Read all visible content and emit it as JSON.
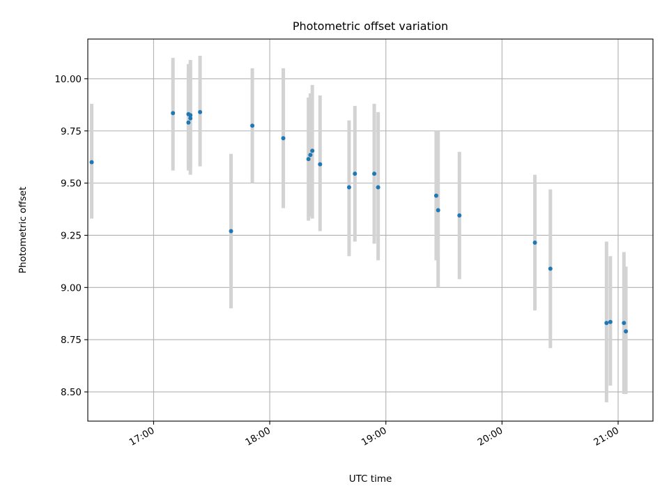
{
  "chart_data": {
    "type": "scatter",
    "title": "Photometric offset variation",
    "xlabel": "UTC time",
    "ylabel": "Photometric offset",
    "xlim": [
      "16:26",
      "21:18"
    ],
    "ylim": [
      8.36,
      10.19
    ],
    "x_ticks": [
      "17:00",
      "18:00",
      "19:00",
      "20:00",
      "21:00"
    ],
    "y_ticks": [
      10.0,
      9.75,
      9.5,
      9.25,
      9.0,
      8.75,
      8.5
    ],
    "y_tick_labels": [
      "10.00",
      "9.75",
      "9.50",
      "9.25",
      "9.00",
      "8.75",
      "8.50"
    ],
    "grid": true,
    "marker_color": "#1f77b4",
    "errorbar_color": "#d3d3d3",
    "points": [
      {
        "x": "16:28",
        "y": 9.6,
        "ylow": 9.33,
        "yhigh": 9.88
      },
      {
        "x": "17:10",
        "y": 9.835,
        "ylow": 9.56,
        "yhigh": 10.1
      },
      {
        "x": "17:18",
        "y": 9.83,
        "ylow": 9.59,
        "yhigh": 10.07
      },
      {
        "x": "17:18",
        "y": 9.79,
        "ylow": 9.56,
        "yhigh": 10.02
      },
      {
        "x": "17:19",
        "y": 9.825,
        "ylow": 9.57,
        "yhigh": 10.09
      },
      {
        "x": "17:19",
        "y": 9.81,
        "ylow": 9.54,
        "yhigh": 10.08
      },
      {
        "x": "17:24",
        "y": 9.84,
        "ylow": 9.58,
        "yhigh": 10.11
      },
      {
        "x": "17:40",
        "y": 9.27,
        "ylow": 8.9,
        "yhigh": 9.64
      },
      {
        "x": "17:51",
        "y": 9.775,
        "ylow": 9.5,
        "yhigh": 10.05
      },
      {
        "x": "18:07",
        "y": 9.715,
        "ylow": 9.38,
        "yhigh": 10.05
      },
      {
        "x": "18:20",
        "y": 9.615,
        "ylow": 9.32,
        "yhigh": 9.91
      },
      {
        "x": "18:21",
        "y": 9.635,
        "ylow": 9.34,
        "yhigh": 9.93
      },
      {
        "x": "18:22",
        "y": 9.655,
        "ylow": 9.33,
        "yhigh": 9.97
      },
      {
        "x": "18:26",
        "y": 9.59,
        "ylow": 9.27,
        "yhigh": 9.92
      },
      {
        "x": "18:41",
        "y": 9.48,
        "ylow": 9.15,
        "yhigh": 9.8
      },
      {
        "x": "18:44",
        "y": 9.545,
        "ylow": 9.22,
        "yhigh": 9.87
      },
      {
        "x": "18:54",
        "y": 9.545,
        "ylow": 9.21,
        "yhigh": 9.88
      },
      {
        "x": "18:56",
        "y": 9.48,
        "ylow": 9.13,
        "yhigh": 9.84
      },
      {
        "x": "19:26",
        "y": 9.44,
        "ylow": 9.13,
        "yhigh": 9.75
      },
      {
        "x": "19:27",
        "y": 9.37,
        "ylow": 9.0,
        "yhigh": 9.75
      },
      {
        "x": "19:38",
        "y": 9.345,
        "ylow": 9.04,
        "yhigh": 9.65
      },
      {
        "x": "20:17",
        "y": 9.215,
        "ylow": 8.89,
        "yhigh": 9.54
      },
      {
        "x": "20:25",
        "y": 9.09,
        "ylow": 8.71,
        "yhigh": 9.47
      },
      {
        "x": "20:54",
        "y": 8.83,
        "ylow": 8.45,
        "yhigh": 9.22
      },
      {
        "x": "20:56",
        "y": 8.835,
        "ylow": 8.53,
        "yhigh": 9.15
      },
      {
        "x": "21:03",
        "y": 8.83,
        "ylow": 8.49,
        "yhigh": 9.17
      },
      {
        "x": "21:04",
        "y": 8.79,
        "ylow": 8.49,
        "yhigh": 9.1
      }
    ]
  }
}
